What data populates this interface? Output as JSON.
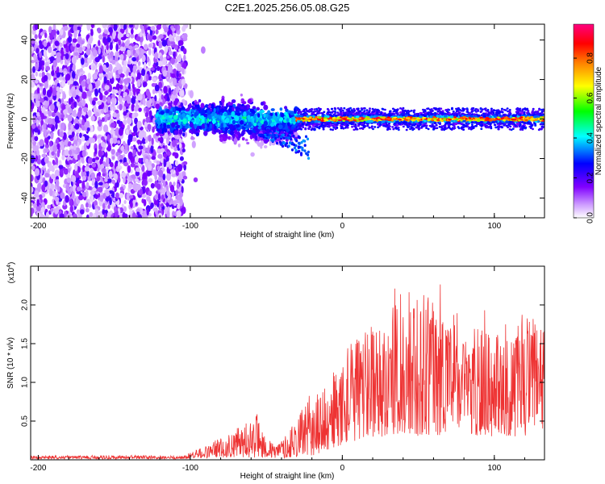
{
  "title": "C2E1.2025.256.05.08.G25",
  "chart_data": [
    {
      "type": "heatmap",
      "title": "C2E1.2025.256.05.08.G25",
      "xlabel": "Height of straight line (km)",
      "ylabel": "Frequency (Hz)",
      "xlim": [
        -205,
        133
      ],
      "ylim": [
        -50,
        48
      ],
      "x_ticks": [
        -200,
        -100,
        0,
        100
      ],
      "x_tick_labels": [
        "-200",
        "-100",
        "0",
        "100"
      ],
      "y_ticks": [
        -40,
        -20,
        0,
        20,
        40
      ],
      "y_tick_labels": [
        "-40",
        "-20",
        "0",
        "20",
        "40"
      ],
      "colorbar": {
        "label": "Normalized spectral amplitude",
        "range": [
          0,
          0.97
        ],
        "ticks": [
          0,
          0.2,
          0.4,
          0.6,
          0.8
        ],
        "tick_labels": [
          "0.0",
          "0.2",
          "0.4",
          "0.6",
          "0.8"
        ],
        "colormap": [
          "#ffffff",
          "#cc99ff",
          "#8000ff",
          "#0000ff",
          "#00ffff",
          "#00ff00",
          "#ffff00",
          "#ff8000",
          "#ff0000",
          "#ff0080"
        ]
      },
      "description_regions": [
        {
          "x_range": [
            -205,
            -103
          ],
          "freq_range": [
            -50,
            48
          ],
          "level": "low (0.05-0.25), scattered noise"
        },
        {
          "x_range": [
            -122,
            -30
          ],
          "freq_range": [
            -20,
            12
          ],
          "level": "medium (0.2-0.5)"
        },
        {
          "x_range": [
            -30,
            133
          ],
          "freq_range": [
            -3,
            3
          ],
          "level": "high (0.6-0.95) line near 0 Hz"
        }
      ]
    },
    {
      "type": "line",
      "xlabel": "Height of straight line (km)",
      "ylabel": "SNR (10 * v/v)",
      "y_multiplier": "(x10",
      "y_multiplier_exp": "4",
      "y_multiplier_close": ")",
      "xlim": [
        -205,
        133
      ],
      "ylim": [
        0,
        2.5
      ],
      "x_ticks": [
        -200,
        -100,
        0,
        100
      ],
      "x_tick_labels": [
        "-200",
        "-100",
        "0",
        "100"
      ],
      "y_ticks": [
        0.5,
        1.0,
        1.5,
        2.0
      ],
      "y_tick_labels": [
        "0.5",
        "1.0",
        "1.5",
        "2.0"
      ],
      "color": "#ee3333",
      "envelope": {
        "x": [
          -205,
          -150,
          -105,
          -100,
          -90,
          -80,
          -70,
          -60,
          -55,
          -50,
          -45,
          -40,
          -35,
          -30,
          -25,
          -20,
          -15,
          -10,
          -5,
          0,
          10,
          20,
          30,
          40,
          50,
          60,
          70,
          80,
          90,
          100,
          110,
          120,
          133
        ],
        "lower": [
          0.01,
          0.01,
          0.01,
          0.02,
          0.02,
          0.03,
          0.03,
          0.03,
          0.03,
          0.02,
          0.02,
          0.02,
          0.03,
          0.04,
          0.05,
          0.05,
          0.08,
          0.1,
          0.15,
          0.2,
          0.25,
          0.3,
          0.3,
          0.35,
          0.3,
          0.3,
          0.35,
          0.35,
          0.3,
          0.3,
          0.3,
          0.3,
          0.3
        ],
        "upper": [
          0.05,
          0.06,
          0.05,
          0.1,
          0.18,
          0.3,
          0.4,
          0.55,
          0.6,
          0.3,
          0.2,
          0.25,
          0.4,
          0.55,
          0.7,
          0.9,
          0.85,
          1.0,
          1.2,
          1.3,
          1.7,
          1.9,
          1.8,
          2.3,
          2.0,
          2.2,
          1.9,
          1.6,
          1.7,
          1.7,
          1.6,
          1.9,
          1.8
        ]
      }
    }
  ]
}
